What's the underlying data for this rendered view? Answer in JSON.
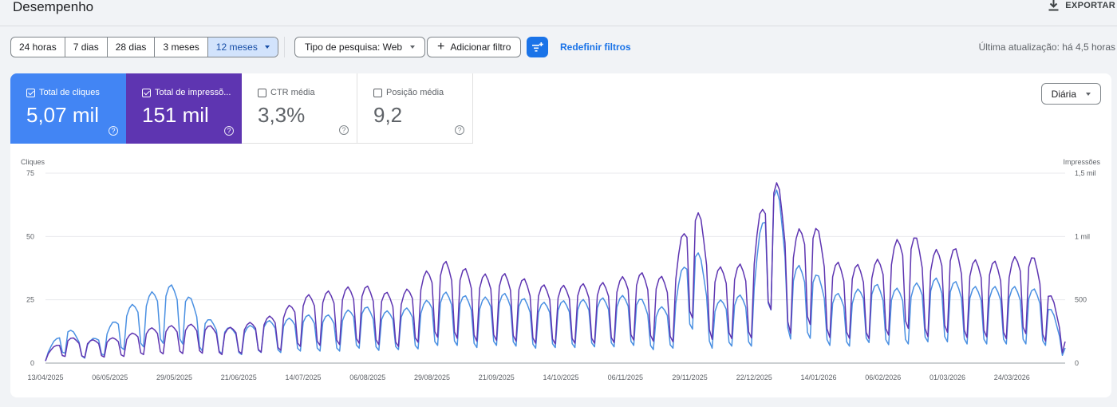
{
  "header": {
    "title": "Desempenho",
    "export_label": "EXPORTAR"
  },
  "filters": {
    "ranges": [
      "24 horas",
      "7 dias",
      "28 dias",
      "3 meses",
      "12 meses"
    ],
    "active_range": "12 meses",
    "search_type": "Tipo de pesquisa: Web",
    "add_filter": "Adicionar filtro",
    "reset": "Redefinir filtros",
    "last_update": "Última atualização: há 4,5 horas"
  },
  "metrics": [
    {
      "label": "Total de cliques",
      "value": "5,07 mil",
      "checked": true,
      "color": "#4285f4"
    },
    {
      "label": "Total de impressõ...",
      "value": "151 mil",
      "checked": true,
      "color": "#5e35b1"
    },
    {
      "label": "CTR média",
      "value": "3,3%",
      "checked": false
    },
    {
      "label": "Posição média",
      "value": "9,2",
      "checked": false
    }
  ],
  "granularity": "Diária",
  "help_glyph": "?",
  "chart_data": {
    "type": "line",
    "left_axis_label": "Cliques",
    "right_axis_label": "Impressões",
    "left_ticks": [
      "75",
      "50",
      "25",
      "0"
    ],
    "left_ylim": [
      0,
      75
    ],
    "right_ticks": [
      "1,5 mil",
      "1 mil",
      "500",
      "0"
    ],
    "right_ylim": [
      0,
      1500
    ],
    "x_tick_labels": [
      "13/04/2025",
      "06/05/2025",
      "29/05/2025",
      "21/06/2025",
      "14/07/2025",
      "06/08/2025",
      "29/08/2025",
      "21/09/2025",
      "14/10/2025",
      "06/11/2025",
      "29/11/2025",
      "22/12/2025",
      "14/01/2026",
      "06/02/2026",
      "01/03/2026",
      "24/03/2026"
    ],
    "x_range": [
      "2025-04-13",
      "2026-04-12"
    ],
    "grid": true,
    "series": [
      {
        "name": "Total de cliques",
        "color": "#4a90e2",
        "axis": "left",
        "points": [
          [
            "2025-04-13",
            3
          ],
          [
            "2025-04-20",
            14
          ],
          [
            "2025-04-27",
            7
          ],
          [
            "2025-05-04",
            11
          ],
          [
            "2025-05-11",
            19
          ],
          [
            "2025-05-18",
            23
          ],
          [
            "2025-05-25",
            28
          ],
          [
            "2025-06-01",
            27
          ],
          [
            "2025-06-08",
            17
          ],
          [
            "2025-06-15",
            13
          ],
          [
            "2025-06-22",
            12
          ],
          [
            "2025-06-29",
            15
          ],
          [
            "2025-07-06",
            15
          ],
          [
            "2025-07-13",
            17
          ],
          [
            "2025-07-20",
            17
          ],
          [
            "2025-07-27",
            17
          ],
          [
            "2025-08-03",
            21
          ],
          [
            "2025-08-10",
            18
          ],
          [
            "2025-08-17",
            19
          ],
          [
            "2025-08-24",
            20
          ],
          [
            "2025-08-31",
            25
          ],
          [
            "2025-09-07",
            25
          ],
          [
            "2025-09-14",
            22
          ],
          [
            "2025-09-21",
            25
          ],
          [
            "2025-09-28",
            24
          ],
          [
            "2025-10-05",
            21
          ],
          [
            "2025-10-12",
            22
          ],
          [
            "2025-10-19",
            22
          ],
          [
            "2025-10-26",
            23
          ],
          [
            "2025-11-02",
            23
          ],
          [
            "2025-11-09",
            25
          ],
          [
            "2025-11-16",
            19
          ],
          [
            "2025-11-23",
            21
          ],
          [
            "2025-11-30",
            48
          ],
          [
            "2025-12-07",
            21
          ],
          [
            "2025-12-14",
            24
          ],
          [
            "2025-12-21",
            24
          ],
          [
            "2025-12-28",
            75
          ],
          [
            "2026-01-04",
            34
          ],
          [
            "2026-01-11",
            35
          ],
          [
            "2026-01-18",
            25
          ],
          [
            "2026-01-25",
            24
          ],
          [
            "2026-02-01",
            29
          ],
          [
            "2026-02-08",
            26
          ],
          [
            "2026-02-15",
            27
          ],
          [
            "2026-02-22",
            30
          ],
          [
            "2026-03-01",
            30
          ],
          [
            "2026-03-08",
            27
          ],
          [
            "2026-03-15",
            27
          ],
          [
            "2026-03-22",
            27
          ],
          [
            "2026-03-29",
            27
          ],
          [
            "2026-04-05",
            25
          ],
          [
            "2026-04-12",
            6
          ]
        ]
      },
      {
        "name": "Total de impressões",
        "color": "#5e35b1",
        "axis": "right",
        "points": [
          [
            "2025-04-13",
            60
          ],
          [
            "2025-04-20",
            190
          ],
          [
            "2025-04-27",
            160
          ],
          [
            "2025-05-04",
            170
          ],
          [
            "2025-05-11",
            190
          ],
          [
            "2025-05-18",
            240
          ],
          [
            "2025-05-25",
            260
          ],
          [
            "2025-06-01",
            270
          ],
          [
            "2025-06-08",
            280
          ],
          [
            "2025-06-15",
            240
          ],
          [
            "2025-06-22",
            270
          ],
          [
            "2025-06-29",
            310
          ],
          [
            "2025-07-06",
            360
          ],
          [
            "2025-07-13",
            470
          ],
          [
            "2025-07-20",
            500
          ],
          [
            "2025-07-27",
            520
          ],
          [
            "2025-08-03",
            560
          ],
          [
            "2025-08-10",
            520
          ],
          [
            "2025-08-17",
            470
          ],
          [
            "2025-08-24",
            590
          ],
          [
            "2025-08-31",
            730
          ],
          [
            "2025-09-07",
            700
          ],
          [
            "2025-09-14",
            620
          ],
          [
            "2025-09-21",
            640
          ],
          [
            "2025-09-28",
            620
          ],
          [
            "2025-10-05",
            560
          ],
          [
            "2025-10-12",
            540
          ],
          [
            "2025-10-19",
            560
          ],
          [
            "2025-10-26",
            560
          ],
          [
            "2025-11-02",
            580
          ],
          [
            "2025-11-09",
            650
          ],
          [
            "2025-11-16",
            620
          ],
          [
            "2025-11-23",
            600
          ],
          [
            "2025-11-30",
            1270
          ],
          [
            "2025-12-07",
            670
          ],
          [
            "2025-12-14",
            690
          ],
          [
            "2025-12-21",
            710
          ],
          [
            "2025-12-28",
            1510
          ],
          [
            "2026-01-04",
            840
          ],
          [
            "2026-01-11",
            1090
          ],
          [
            "2026-01-18",
            720
          ],
          [
            "2026-01-25",
            700
          ],
          [
            "2026-02-01",
            690
          ],
          [
            "2026-02-08",
            790
          ],
          [
            "2026-02-15",
            980
          ],
          [
            "2026-02-22",
            750
          ],
          [
            "2026-03-01",
            870
          ],
          [
            "2026-03-08",
            720
          ],
          [
            "2026-03-15",
            740
          ],
          [
            "2026-03-22",
            690
          ],
          [
            "2026-03-29",
            830
          ],
          [
            "2026-04-05",
            620
          ],
          [
            "2026-04-12",
            170
          ]
        ]
      }
    ]
  }
}
